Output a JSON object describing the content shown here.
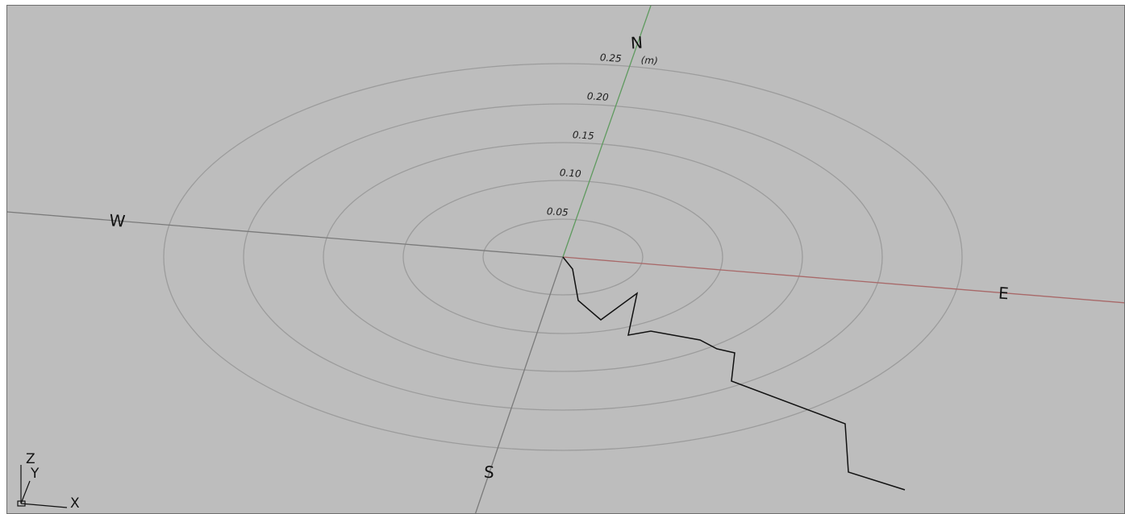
{
  "compass": {
    "north": "N",
    "south": "S",
    "east": "E",
    "west": "W"
  },
  "rings": {
    "labels": [
      "0.05",
      "0.10",
      "0.15",
      "0.20",
      "0.25"
    ],
    "unit": "(m)"
  },
  "triad": {
    "z": "Z",
    "y": "Y",
    "x": "X"
  },
  "colors": {
    "background": "#bdbdbd",
    "ring": "#9c9c9c",
    "north_axis": "#5f9a5f",
    "east_axis": "#a86868",
    "south_axis": "#7a7a7a",
    "west_axis": "#7a7a7a",
    "trace": "#111111"
  }
}
